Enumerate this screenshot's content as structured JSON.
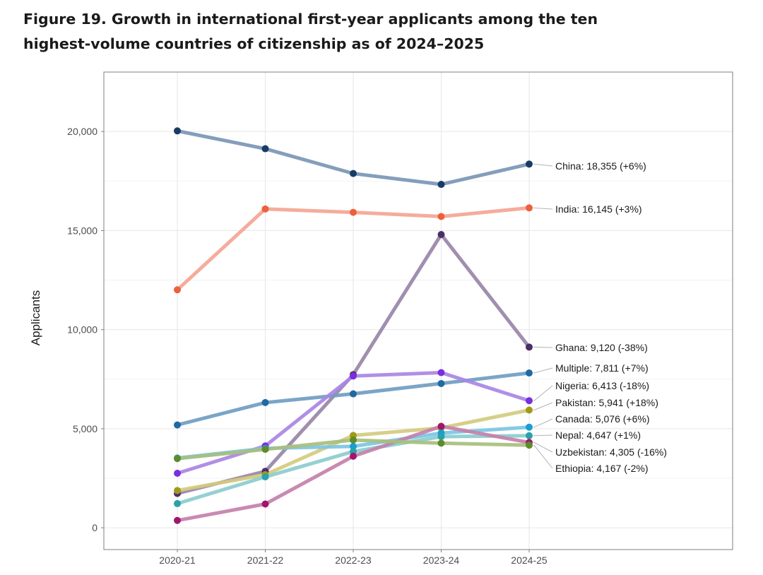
{
  "figure": {
    "title": "Figure 19. Growth in international first-year applicants among the ten highest-volume countries of citizenship as of 2024–2025"
  },
  "chart_data": {
    "type": "line",
    "title": "Figure 19. Growth in international first-year applicants among the ten highest-volume countries of citizenship as of 2024–2025",
    "xlabel": "",
    "ylabel": "Applicants",
    "categories": [
      "2020-21",
      "2021-22",
      "2022-23",
      "2023-24",
      "2024-25"
    ],
    "ylim": [
      -1100,
      23000
    ],
    "yticks": [
      0,
      5000,
      10000,
      15000,
      20000
    ],
    "ytick_labels": [
      "0",
      "5,000",
      "10,000",
      "15,000",
      "20,000"
    ],
    "grid": true,
    "legend": "direct labels at right end of lines",
    "series": [
      {
        "name": "China",
        "label": "China: 18,355 (+6%)",
        "values": [
          20030,
          19130,
          17880,
          17330,
          18355
        ],
        "line_color": "#7a96b5",
        "point_color": "#173c66"
      },
      {
        "name": "India",
        "label": "India: 16,145 (+3%)",
        "values": [
          12010,
          16090,
          15920,
          15710,
          16145
        ],
        "line_color": "#f4a593",
        "point_color": "#ee5f3c"
      },
      {
        "name": "Ghana",
        "label": "Ghana: 9,120 (-38%)",
        "values": [
          1730,
          2850,
          7730,
          14800,
          9120
        ],
        "line_color": "#9886a8",
        "point_color": "#4b2f66"
      },
      {
        "name": "Multiple",
        "label": "Multiple: 7,811 (+7%)",
        "values": [
          5190,
          6320,
          6760,
          7280,
          7811
        ],
        "line_color": "#6f9dc2",
        "point_color": "#1f6aa0"
      },
      {
        "name": "Nigeria",
        "label": "Nigeria: 6,413 (-18%)",
        "values": [
          2750,
          4130,
          7660,
          7830,
          6413
        ],
        "line_color": "#a986e4",
        "point_color": "#7a2ee0"
      },
      {
        "name": "Pakistan",
        "label": "Pakistan: 5,941 (+18%)",
        "values": [
          1880,
          2680,
          4660,
          5040,
          5941
        ],
        "line_color": "#d3cb7e",
        "point_color": "#a09a1a"
      },
      {
        "name": "Canada",
        "label": "Canada: 5,076 (+6%)",
        "values": [
          3520,
          4010,
          4110,
          4780,
          5076
        ],
        "line_color": "#7cc6e3",
        "point_color": "#1a9ed1"
      },
      {
        "name": "Nepal",
        "label": "Nepal: 4,647 (+1%)",
        "values": [
          1220,
          2570,
          3850,
          4600,
          4647
        ],
        "line_color": "#8ccccf",
        "point_color": "#2aa1a8"
      },
      {
        "name": "Uzbekistan",
        "label": "Uzbekistan: 4,305 (-16%)",
        "values": [
          370,
          1200,
          3610,
          5120,
          4305
        ],
        "line_color": "#c480ab",
        "point_color": "#a0166e"
      },
      {
        "name": "Ethiopia",
        "label": "Ethiopia: 4,167 (-2%)",
        "values": [
          3490,
          3960,
          4430,
          4270,
          4167
        ],
        "line_color": "#a7bf7d",
        "point_color": "#5e8c2a"
      }
    ]
  }
}
